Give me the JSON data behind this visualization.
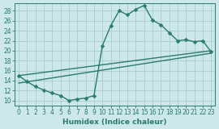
{
  "title": "",
  "xlabel": "Humidex (Indice chaleur)",
  "ylabel": "",
  "bg_color": "#cce8e8",
  "grid_color": "#aacccc",
  "line_color": "#2a7a70",
  "xlim": [
    -0.5,
    23.5
  ],
  "ylim": [
    9.0,
    29.5
  ],
  "xticks": [
    0,
    1,
    2,
    3,
    4,
    5,
    6,
    7,
    8,
    9,
    10,
    11,
    12,
    13,
    14,
    15,
    16,
    17,
    18,
    19,
    20,
    21,
    22,
    23
  ],
  "yticks": [
    10,
    12,
    14,
    16,
    18,
    20,
    22,
    24,
    26,
    28
  ],
  "curve1_x": [
    0,
    1,
    2,
    3,
    4,
    5,
    6,
    7,
    8,
    9,
    10,
    11,
    12,
    13,
    14,
    15,
    16,
    17,
    18,
    19,
    20,
    21,
    22,
    23
  ],
  "curve1_y": [
    15.0,
    13.8,
    12.8,
    12.1,
    11.5,
    11.0,
    10.0,
    10.3,
    10.5,
    11.0,
    21.0,
    25.0,
    28.0,
    27.2,
    28.3,
    29.1,
    26.1,
    25.2,
    23.6,
    22.0,
    22.2,
    21.8,
    22.0,
    19.8
  ],
  "line2_x": [
    0,
    23
  ],
  "line2_y": [
    15.0,
    20.0
  ],
  "line3_x": [
    0,
    23
  ],
  "line3_y": [
    13.5,
    19.5
  ],
  "marker_size": 2.5,
  "line_width": 1.0
}
